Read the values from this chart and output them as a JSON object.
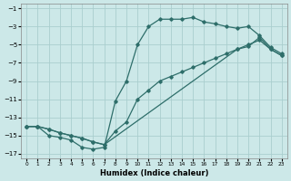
{
  "xlabel": "Humidex (Indice chaleur)",
  "bg_color": "#cce8e8",
  "grid_color": "#aacece",
  "line_color": "#2e6e6a",
  "xlim": [
    -0.5,
    23.5
  ],
  "ylim": [
    -17.5,
    -0.5
  ],
  "xticks": [
    0,
    1,
    2,
    3,
    4,
    5,
    6,
    7,
    8,
    9,
    10,
    11,
    12,
    13,
    14,
    15,
    16,
    17,
    18,
    19,
    20,
    21,
    22,
    23
  ],
  "yticks": [
    -17,
    -15,
    -13,
    -11,
    -9,
    -7,
    -5,
    -3,
    -1
  ],
  "line1_x": [
    0,
    1,
    2,
    3,
    4,
    5,
    6,
    7,
    8,
    9,
    10,
    11,
    12,
    13,
    14,
    15,
    16,
    17,
    18,
    19,
    20,
    21,
    22,
    23
  ],
  "line1_y": [
    -14,
    -14,
    -15,
    -15.2,
    -15.5,
    -16.3,
    -16.5,
    -16.3,
    -11.2,
    -9,
    -5,
    -3,
    -2.2,
    -2.2,
    -2.2,
    -2,
    -2.5,
    -2.7,
    -3,
    -3.2,
    -3,
    -4,
    -5.3,
    -6
  ],
  "line2_x": [
    0,
    1,
    2,
    3,
    4,
    5,
    6,
    7,
    8,
    9,
    10,
    11,
    12,
    13,
    14,
    15,
    16,
    17,
    18,
    19,
    20,
    21,
    22,
    23
  ],
  "line2_y": [
    -14,
    -14,
    -14.3,
    -14.7,
    -15,
    -15.3,
    -15.7,
    -16,
    -14.5,
    -13.5,
    -11,
    -10,
    -9,
    -8.5,
    -8,
    -7.5,
    -7,
    -6.5,
    -6,
    -5.5,
    -5,
    -4.5,
    -5.5,
    -6.2
  ],
  "line3_x": [
    0,
    1,
    2,
    3,
    4,
    5,
    6,
    7,
    19,
    20,
    21,
    22,
    23
  ],
  "line3_y": [
    -14,
    -14,
    -14.3,
    -14.7,
    -15,
    -15.3,
    -15.7,
    -16,
    -5.5,
    -5.2,
    -4.2,
    -5.5,
    -6.2
  ]
}
